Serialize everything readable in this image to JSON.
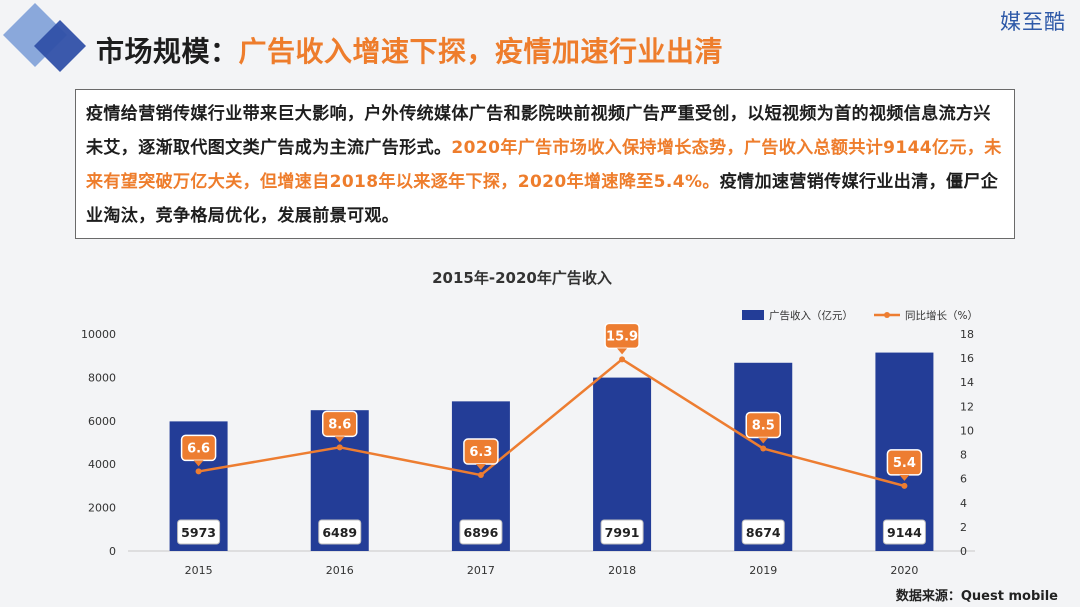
{
  "header": {
    "brand": "媒至酷",
    "title_prefix": "市场规模：",
    "title_accent": "广告收入增速下探，疫情加速行业出清"
  },
  "summary": {
    "part1": "疫情给营销传媒行业带来巨大影响，户外传统媒体广告和影院映前视频广告严重受创，以短视频为首的视频信息流方兴未艾，逐渐取代图文类广告成为主流广告形式。",
    "part2_highlight": "2020年广告市场收入保持增长态势，广告收入总额共计9144亿元，未来有望突破万亿大关，但增速自2018年以来逐年下探，2020年增速降至5.4%。",
    "part3": "疫情加速营销传媒行业出清，僵尸企业淘汰，竞争格局优化，发展前景可观。"
  },
  "footer": {
    "source": "数据来源：Quest mobile"
  },
  "colors": {
    "bar": "#233d97",
    "line": "#ed7d31",
    "accent_text": "#ee7d2c"
  },
  "chart_data": {
    "type": "bar",
    "title": "2015年-2020年广告收入",
    "categories": [
      "2015",
      "2016",
      "2017",
      "2018",
      "2019",
      "2020"
    ],
    "series": [
      {
        "name": "广告收入（亿元）",
        "type": "bar",
        "axis": "left",
        "values": [
          5973,
          6489,
          6896,
          7991,
          8674,
          9144
        ]
      },
      {
        "name": "同比增长（%）",
        "type": "line",
        "axis": "right",
        "values": [
          6.6,
          8.6,
          6.3,
          15.9,
          8.5,
          5.4
        ]
      }
    ],
    "y_left": {
      "min": 0,
      "max": 10000,
      "ticks": [
        0,
        2000,
        4000,
        6000,
        8000,
        10000
      ]
    },
    "y_right": {
      "min": 0,
      "max": 18,
      "ticks": [
        0,
        2,
        4,
        6,
        8,
        10,
        12,
        14,
        16,
        18
      ]
    },
    "grid": false,
    "legend": "top-right"
  }
}
